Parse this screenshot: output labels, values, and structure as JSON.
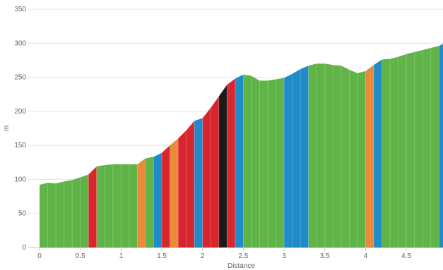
{
  "chart_data": {
    "type": "area",
    "xlabel": "Distance",
    "ylabel": "m",
    "xlim": [
      0,
      4.95
    ],
    "ylim": [
      0,
      350
    ],
    "x_ticks": [
      0,
      0.5,
      1,
      1.5,
      2,
      2.5,
      3,
      3.5,
      4,
      4.5
    ],
    "x_tick_labels": [
      "0",
      "0.5",
      "1",
      "1.5",
      "2",
      "2.5",
      "3",
      "3.5",
      "4",
      "4.5"
    ],
    "y_ticks": [
      0,
      50,
      100,
      150,
      200,
      250,
      300,
      350
    ],
    "y_tick_labels": [
      "0",
      "50",
      "100",
      "150",
      "200",
      "250",
      "300",
      "350"
    ],
    "grid": "horizontal",
    "colors": {
      "green": "#5fb347",
      "red": "#d9262e",
      "orange": "#e98a3a",
      "blue": "#1f8bc9",
      "black": "#1e1a1a"
    },
    "profile": [
      [
        0.0,
        92
      ],
      [
        0.1,
        95
      ],
      [
        0.2,
        94
      ],
      [
        0.3,
        97
      ],
      [
        0.4,
        99
      ],
      [
        0.5,
        103
      ],
      [
        0.6,
        107
      ],
      [
        0.7,
        119
      ],
      [
        0.8,
        121
      ],
      [
        0.9,
        122
      ],
      [
        1.0,
        122
      ],
      [
        1.1,
        122
      ],
      [
        1.2,
        122
      ],
      [
        1.3,
        131
      ],
      [
        1.4,
        133
      ],
      [
        1.5,
        139
      ],
      [
        1.6,
        150
      ],
      [
        1.7,
        160
      ],
      [
        1.8,
        172
      ],
      [
        1.9,
        186
      ],
      [
        2.0,
        190
      ],
      [
        2.1,
        205
      ],
      [
        2.2,
        222
      ],
      [
        2.3,
        239
      ],
      [
        2.4,
        248
      ],
      [
        2.5,
        254
      ],
      [
        2.6,
        252
      ],
      [
        2.7,
        245
      ],
      [
        2.8,
        245
      ],
      [
        2.9,
        247
      ],
      [
        3.0,
        249
      ],
      [
        3.1,
        255
      ],
      [
        3.2,
        262
      ],
      [
        3.3,
        267
      ],
      [
        3.4,
        270
      ],
      [
        3.5,
        270
      ],
      [
        3.6,
        268
      ],
      [
        3.7,
        267
      ],
      [
        3.8,
        261
      ],
      [
        3.9,
        256
      ],
      [
        4.0,
        259
      ],
      [
        4.1,
        268
      ],
      [
        4.2,
        276
      ],
      [
        4.3,
        277
      ],
      [
        4.4,
        280
      ],
      [
        4.5,
        284
      ],
      [
        4.6,
        287
      ],
      [
        4.7,
        290
      ],
      [
        4.8,
        293
      ],
      [
        4.9,
        296
      ],
      [
        4.95,
        299
      ]
    ],
    "segments": [
      {
        "from": 0.0,
        "to": 0.6,
        "color": "green"
      },
      {
        "from": 0.6,
        "to": 0.7,
        "color": "red"
      },
      {
        "from": 0.7,
        "to": 1.2,
        "color": "green"
      },
      {
        "from": 1.2,
        "to": 1.3,
        "color": "orange"
      },
      {
        "from": 1.3,
        "to": 1.4,
        "color": "green"
      },
      {
        "from": 1.4,
        "to": 1.5,
        "color": "blue"
      },
      {
        "from": 1.5,
        "to": 1.6,
        "color": "red"
      },
      {
        "from": 1.6,
        "to": 1.7,
        "color": "orange"
      },
      {
        "from": 1.7,
        "to": 1.9,
        "color": "red"
      },
      {
        "from": 1.9,
        "to": 2.0,
        "color": "blue"
      },
      {
        "from": 2.0,
        "to": 2.2,
        "color": "red"
      },
      {
        "from": 2.2,
        "to": 2.3,
        "color": "black"
      },
      {
        "from": 2.3,
        "to": 2.4,
        "color": "red"
      },
      {
        "from": 2.4,
        "to": 2.5,
        "color": "blue"
      },
      {
        "from": 2.5,
        "to": 3.0,
        "color": "green"
      },
      {
        "from": 3.0,
        "to": 3.3,
        "color": "blue"
      },
      {
        "from": 3.3,
        "to": 4.0,
        "color": "green"
      },
      {
        "from": 4.0,
        "to": 4.1,
        "color": "orange"
      },
      {
        "from": 4.1,
        "to": 4.2,
        "color": "blue"
      },
      {
        "from": 4.2,
        "to": 4.9,
        "color": "green"
      },
      {
        "from": 4.9,
        "to": 4.95,
        "color": "blue"
      }
    ]
  }
}
